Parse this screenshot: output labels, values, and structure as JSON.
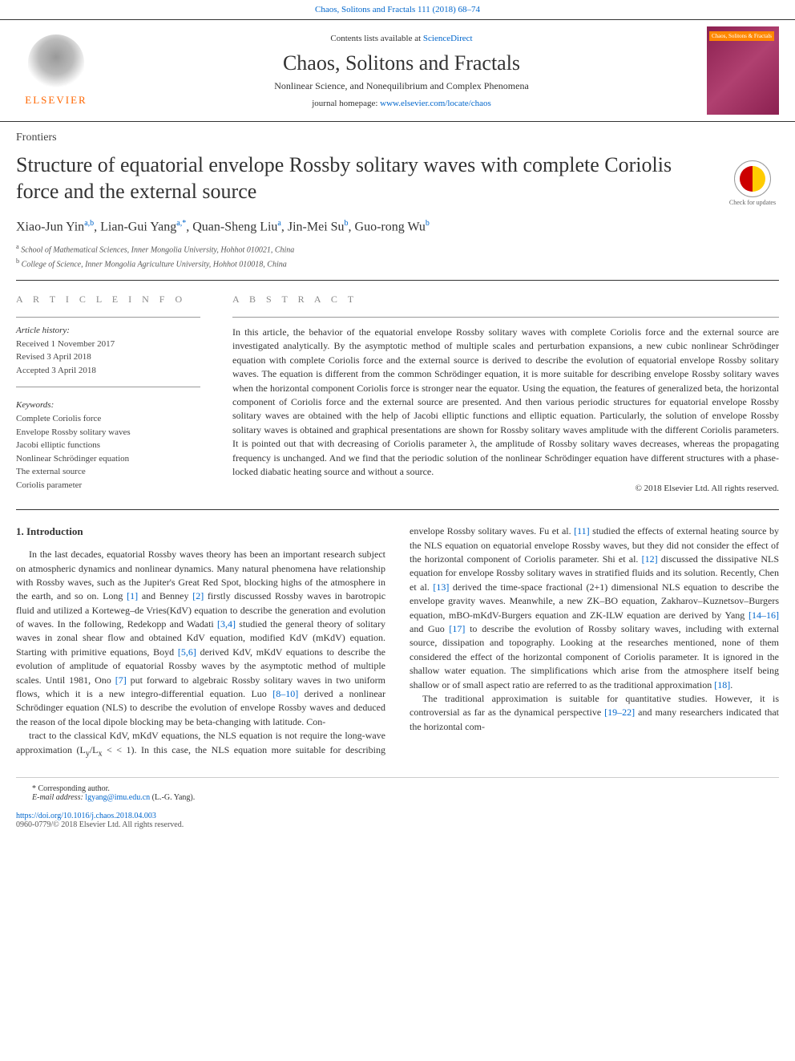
{
  "header": {
    "citation": "Chaos, Solitons and Fractals 111 (2018) 68–74",
    "contents_prefix": "Contents lists available at ",
    "contents_link": "ScienceDirect",
    "journal_name": "Chaos, Solitons and Fractals",
    "journal_subtitle": "Nonlinear Science, and Nonequilibrium and Complex Phenomena",
    "homepage_prefix": "journal homepage: ",
    "homepage_url": "www.elsevier.com/locate/chaos",
    "publisher": "ELSEVIER",
    "cover_label": "Chaos, Solitons & Fractals"
  },
  "article": {
    "type": "Frontiers",
    "title": "Structure of equatorial envelope Rossby solitary waves with complete Coriolis force and the external source",
    "crossmark_label": "Check for updates",
    "authors_html": "Xiao-Jun Yin<sup>a,b</sup>, Lian-Gui Yang<sup>a,*</sup>, Quan-Sheng Liu<sup>a</sup>, Jin-Mei Su<sup>b</sup>, Guo-rong Wu<sup>b</sup>",
    "affiliations": [
      {
        "sup": "a",
        "text": "School of Mathematical Sciences, Inner Mongolia University, Hohhot 010021, China"
      },
      {
        "sup": "b",
        "text": "College of Science, Inner Mongolia Agriculture University, Hohhot 010018, China"
      }
    ]
  },
  "info": {
    "label": "A R T I C L E   I N F O",
    "history_heading": "Article history:",
    "received": "Received 1 November 2017",
    "revised": "Revised 3 April 2018",
    "accepted": "Accepted 3 April 2018",
    "keywords_heading": "Keywords:",
    "keywords": [
      "Complete Coriolis force",
      "Envelope Rossby solitary waves",
      "Jacobi elliptic functions",
      "Nonlinear Schrödinger equation",
      "The external source",
      "Coriolis parameter"
    ]
  },
  "abstract": {
    "label": "A B S T R A C T",
    "text": "In this article, the behavior of the equatorial envelope Rossby solitary waves with complete Coriolis force and the external source are investigated analytically. By the asymptotic method of multiple scales and perturbation expansions, a new cubic nonlinear Schrödinger equation with complete Coriolis force and the external source is derived to describe the evolution of equatorial envelope Rossby solitary waves. The equation is different from the common Schrödinger equation, it is more suitable for describing envelope Rossby solitary waves when the horizontal component Coriolis force is stronger near the equator. Using the equation, the features of generalized beta, the horizontal component of Coriolis force and the external source are presented. And then various periodic structures for equatorial envelope Rossby solitary waves are obtained with the help of Jacobi elliptic functions and elliptic equation. Particularly, the solution of envelope Rossby solitary waves is obtained and graphical presentations are shown for Rossby solitary waves amplitude with the different Coriolis parameters. It is pointed out that with decreasing of Coriolis parameter λ, the amplitude of Rossby solitary waves decreases, whereas the propagating frequency is unchanged. And we find that the periodic solution of the nonlinear Schrödinger equation have different structures with a phase-locked diabatic heating source and without a source.",
    "copyright": "© 2018 Elsevier Ltd. All rights reserved."
  },
  "body": {
    "heading": "1. Introduction",
    "col1_html": "In the last decades, equatorial Rossby waves theory has been an important research subject on atmospheric dynamics and nonlinear dynamics. Many natural phenomena have relationship with Rossby waves, such as the Jupiter's Great Red Spot, blocking highs of the atmosphere in the earth, and so on. Long <span class='ref'>[1]</span> and Benney <span class='ref'>[2]</span> firstly discussed Rossby waves in barotropic fluid and utilized a Korteweg–de Vries(KdV) equation to describe the generation and evolution of waves. In the following, Redekopp and Wadati <span class='ref'>[3,4]</span> studied the general theory of solitary waves in zonal shear flow and obtained KdV equation, modified KdV (mKdV) equation. Starting with primitive equations, Boyd <span class='ref'>[5,6]</span> derived KdV, mKdV equations to describe the evolution of amplitude of equatorial Rossby waves by the asymptotic method of multiple scales. Until 1981, Ono <span class='ref'>[7]</span> put forward to algebraic Rossby solitary waves in two uniform flows, which it is a new integro-differential equation. Luo <span class='ref'>[8–10]</span> derived a nonlinear Schrödinger equation (NLS) to describe the evolution of envelope Rossby waves and deduced the reason of the local dipole blocking may be beta-changing with latitude. Con-",
    "col2_html": "tract to the classical KdV, mKdV equations, the NLS equation is not require the long-wave approximation (L<sub>y</sub>/L<sub>x</sub> < < 1). In this case, the NLS equation more suitable for describing envelope Rossby solitary waves. Fu et al. <span class='ref'>[11]</span> studied the effects of external heating source by the NLS equation on equatorial envelope Rossby waves, but they did not consider the effect of the horizontal component of Coriolis parameter. Shi et al. <span class='ref'>[12]</span> discussed the dissipative NLS equation for envelope Rossby solitary waves in stratified fluids and its solution. Recently, Chen et al. <span class='ref'>[13]</span> derived the time-space fractional (2+1) dimensional NLS equation to describe the envelope gravity waves. Meanwhile, a new ZK–BO equation, Zakharov–Kuznetsov–Burgers equation, mBO-mKdV-Burgers equation and ZK-ILW equation are derived by Yang <span class='ref'>[14–16]</span> and Guo <span class='ref'>[17]</span> to describe the evolution of Rossby solitary waves, including with external source, dissipation and topography. Looking at the researches mentioned, none of them considered the effect of the horizontal component of Coriolis parameter. It is ignored in the shallow water equation. The simplifications which arise from the atmosphere itself being shallow or of small aspect ratio are referred to as the traditional approximation <span class='ref'>[18]</span>.",
    "col2_p2_html": "The traditional approximation is suitable for quantitative studies. However, it is controversial as far as the dynamical perspective <span class='ref'>[19–22]</span> and many researchers indicated that the horizontal com-"
  },
  "footer": {
    "corr": "* Corresponding author.",
    "email_prefix": "E-mail address: ",
    "email": "lgyang@imu.edu.cn",
    "email_suffix": " (L.-G. Yang).",
    "doi": "https://doi.org/10.1016/j.chaos.2018.04.003",
    "issn": "0960-0779/© 2018 Elsevier Ltd. All rights reserved."
  },
  "colors": {
    "link": "#0066cc",
    "publisher": "#ff6600",
    "crossmark_red": "#cc0000",
    "crossmark_yellow": "#ffcc00",
    "cover_bg": "#8b2050"
  }
}
